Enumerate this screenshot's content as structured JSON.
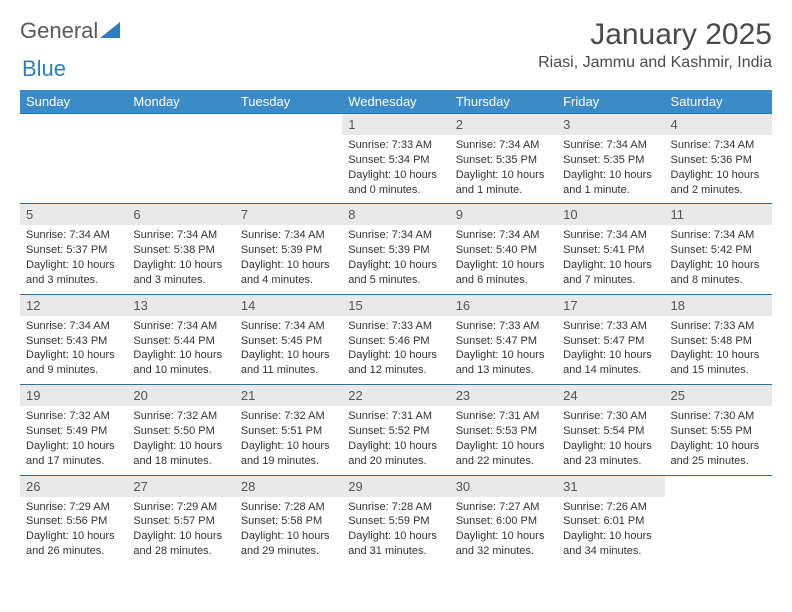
{
  "brand": {
    "part1": "General",
    "part2": "Blue"
  },
  "title": "January 2025",
  "location": "Riasi, Jammu and Kashmir, India",
  "colors": {
    "header_bg": "#3b8bc9",
    "header_text": "#ffffff",
    "daynum_bg": "#e9e9e9",
    "row_border": "#2d6fa8",
    "brand_gray": "#5a5a5a",
    "brand_blue": "#2d7fc1"
  },
  "font": {
    "family": "Arial",
    "title_size": 30,
    "location_size": 16,
    "header_size": 13,
    "body_size": 11
  },
  "day_names": [
    "Sunday",
    "Monday",
    "Tuesday",
    "Wednesday",
    "Thursday",
    "Friday",
    "Saturday"
  ],
  "weeks": [
    [
      null,
      null,
      null,
      {
        "n": "1",
        "sunrise": "7:33 AM",
        "sunset": "5:34 PM",
        "daylight": "10 hours and 0 minutes."
      },
      {
        "n": "2",
        "sunrise": "7:34 AM",
        "sunset": "5:35 PM",
        "daylight": "10 hours and 1 minute."
      },
      {
        "n": "3",
        "sunrise": "7:34 AM",
        "sunset": "5:35 PM",
        "daylight": "10 hours and 1 minute."
      },
      {
        "n": "4",
        "sunrise": "7:34 AM",
        "sunset": "5:36 PM",
        "daylight": "10 hours and 2 minutes."
      }
    ],
    [
      {
        "n": "5",
        "sunrise": "7:34 AM",
        "sunset": "5:37 PM",
        "daylight": "10 hours and 3 minutes."
      },
      {
        "n": "6",
        "sunrise": "7:34 AM",
        "sunset": "5:38 PM",
        "daylight": "10 hours and 3 minutes."
      },
      {
        "n": "7",
        "sunrise": "7:34 AM",
        "sunset": "5:39 PM",
        "daylight": "10 hours and 4 minutes."
      },
      {
        "n": "8",
        "sunrise": "7:34 AM",
        "sunset": "5:39 PM",
        "daylight": "10 hours and 5 minutes."
      },
      {
        "n": "9",
        "sunrise": "7:34 AM",
        "sunset": "5:40 PM",
        "daylight": "10 hours and 6 minutes."
      },
      {
        "n": "10",
        "sunrise": "7:34 AM",
        "sunset": "5:41 PM",
        "daylight": "10 hours and 7 minutes."
      },
      {
        "n": "11",
        "sunrise": "7:34 AM",
        "sunset": "5:42 PM",
        "daylight": "10 hours and 8 minutes."
      }
    ],
    [
      {
        "n": "12",
        "sunrise": "7:34 AM",
        "sunset": "5:43 PM",
        "daylight": "10 hours and 9 minutes."
      },
      {
        "n": "13",
        "sunrise": "7:34 AM",
        "sunset": "5:44 PM",
        "daylight": "10 hours and 10 minutes."
      },
      {
        "n": "14",
        "sunrise": "7:34 AM",
        "sunset": "5:45 PM",
        "daylight": "10 hours and 11 minutes."
      },
      {
        "n": "15",
        "sunrise": "7:33 AM",
        "sunset": "5:46 PM",
        "daylight": "10 hours and 12 minutes."
      },
      {
        "n": "16",
        "sunrise": "7:33 AM",
        "sunset": "5:47 PM",
        "daylight": "10 hours and 13 minutes."
      },
      {
        "n": "17",
        "sunrise": "7:33 AM",
        "sunset": "5:47 PM",
        "daylight": "10 hours and 14 minutes."
      },
      {
        "n": "18",
        "sunrise": "7:33 AM",
        "sunset": "5:48 PM",
        "daylight": "10 hours and 15 minutes."
      }
    ],
    [
      {
        "n": "19",
        "sunrise": "7:32 AM",
        "sunset": "5:49 PM",
        "daylight": "10 hours and 17 minutes."
      },
      {
        "n": "20",
        "sunrise": "7:32 AM",
        "sunset": "5:50 PM",
        "daylight": "10 hours and 18 minutes."
      },
      {
        "n": "21",
        "sunrise": "7:32 AM",
        "sunset": "5:51 PM",
        "daylight": "10 hours and 19 minutes."
      },
      {
        "n": "22",
        "sunrise": "7:31 AM",
        "sunset": "5:52 PM",
        "daylight": "10 hours and 20 minutes."
      },
      {
        "n": "23",
        "sunrise": "7:31 AM",
        "sunset": "5:53 PM",
        "daylight": "10 hours and 22 minutes."
      },
      {
        "n": "24",
        "sunrise": "7:30 AM",
        "sunset": "5:54 PM",
        "daylight": "10 hours and 23 minutes."
      },
      {
        "n": "25",
        "sunrise": "7:30 AM",
        "sunset": "5:55 PM",
        "daylight": "10 hours and 25 minutes."
      }
    ],
    [
      {
        "n": "26",
        "sunrise": "7:29 AM",
        "sunset": "5:56 PM",
        "daylight": "10 hours and 26 minutes."
      },
      {
        "n": "27",
        "sunrise": "7:29 AM",
        "sunset": "5:57 PM",
        "daylight": "10 hours and 28 minutes."
      },
      {
        "n": "28",
        "sunrise": "7:28 AM",
        "sunset": "5:58 PM",
        "daylight": "10 hours and 29 minutes."
      },
      {
        "n": "29",
        "sunrise": "7:28 AM",
        "sunset": "5:59 PM",
        "daylight": "10 hours and 31 minutes."
      },
      {
        "n": "30",
        "sunrise": "7:27 AM",
        "sunset": "6:00 PM",
        "daylight": "10 hours and 32 minutes."
      },
      {
        "n": "31",
        "sunrise": "7:26 AM",
        "sunset": "6:01 PM",
        "daylight": "10 hours and 34 minutes."
      },
      null
    ]
  ],
  "labels": {
    "sunrise": "Sunrise:",
    "sunset": "Sunset:",
    "daylight": "Daylight:"
  }
}
